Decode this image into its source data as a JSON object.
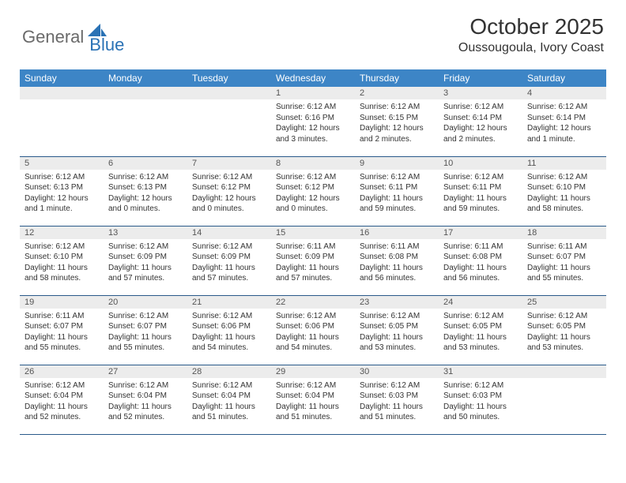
{
  "brand": {
    "part1": "General",
    "part2": "Blue"
  },
  "title": "October 2025",
  "location": "Oussougoula, Ivory Coast",
  "colors": {
    "header_bg": "#3d85c6",
    "header_text": "#ffffff",
    "daynum_bg": "#ececec",
    "border": "#2a5a8a",
    "brand_gray": "#6a6a6a",
    "brand_blue": "#2a72b5"
  },
  "day_headers": [
    "Sunday",
    "Monday",
    "Tuesday",
    "Wednesday",
    "Thursday",
    "Friday",
    "Saturday"
  ],
  "weeks": [
    [
      {
        "n": "",
        "lines": []
      },
      {
        "n": "",
        "lines": []
      },
      {
        "n": "",
        "lines": []
      },
      {
        "n": "1",
        "lines": [
          "Sunrise: 6:12 AM",
          "Sunset: 6:16 PM",
          "Daylight: 12 hours and 3 minutes."
        ]
      },
      {
        "n": "2",
        "lines": [
          "Sunrise: 6:12 AM",
          "Sunset: 6:15 PM",
          "Daylight: 12 hours and 2 minutes."
        ]
      },
      {
        "n": "3",
        "lines": [
          "Sunrise: 6:12 AM",
          "Sunset: 6:14 PM",
          "Daylight: 12 hours and 2 minutes."
        ]
      },
      {
        "n": "4",
        "lines": [
          "Sunrise: 6:12 AM",
          "Sunset: 6:14 PM",
          "Daylight: 12 hours and 1 minute."
        ]
      }
    ],
    [
      {
        "n": "5",
        "lines": [
          "Sunrise: 6:12 AM",
          "Sunset: 6:13 PM",
          "Daylight: 12 hours and 1 minute."
        ]
      },
      {
        "n": "6",
        "lines": [
          "Sunrise: 6:12 AM",
          "Sunset: 6:13 PM",
          "Daylight: 12 hours and 0 minutes."
        ]
      },
      {
        "n": "7",
        "lines": [
          "Sunrise: 6:12 AM",
          "Sunset: 6:12 PM",
          "Daylight: 12 hours and 0 minutes."
        ]
      },
      {
        "n": "8",
        "lines": [
          "Sunrise: 6:12 AM",
          "Sunset: 6:12 PM",
          "Daylight: 12 hours and 0 minutes."
        ]
      },
      {
        "n": "9",
        "lines": [
          "Sunrise: 6:12 AM",
          "Sunset: 6:11 PM",
          "Daylight: 11 hours and 59 minutes."
        ]
      },
      {
        "n": "10",
        "lines": [
          "Sunrise: 6:12 AM",
          "Sunset: 6:11 PM",
          "Daylight: 11 hours and 59 minutes."
        ]
      },
      {
        "n": "11",
        "lines": [
          "Sunrise: 6:12 AM",
          "Sunset: 6:10 PM",
          "Daylight: 11 hours and 58 minutes."
        ]
      }
    ],
    [
      {
        "n": "12",
        "lines": [
          "Sunrise: 6:12 AM",
          "Sunset: 6:10 PM",
          "Daylight: 11 hours and 58 minutes."
        ]
      },
      {
        "n": "13",
        "lines": [
          "Sunrise: 6:12 AM",
          "Sunset: 6:09 PM",
          "Daylight: 11 hours and 57 minutes."
        ]
      },
      {
        "n": "14",
        "lines": [
          "Sunrise: 6:12 AM",
          "Sunset: 6:09 PM",
          "Daylight: 11 hours and 57 minutes."
        ]
      },
      {
        "n": "15",
        "lines": [
          "Sunrise: 6:11 AM",
          "Sunset: 6:09 PM",
          "Daylight: 11 hours and 57 minutes."
        ]
      },
      {
        "n": "16",
        "lines": [
          "Sunrise: 6:11 AM",
          "Sunset: 6:08 PM",
          "Daylight: 11 hours and 56 minutes."
        ]
      },
      {
        "n": "17",
        "lines": [
          "Sunrise: 6:11 AM",
          "Sunset: 6:08 PM",
          "Daylight: 11 hours and 56 minutes."
        ]
      },
      {
        "n": "18",
        "lines": [
          "Sunrise: 6:11 AM",
          "Sunset: 6:07 PM",
          "Daylight: 11 hours and 55 minutes."
        ]
      }
    ],
    [
      {
        "n": "19",
        "lines": [
          "Sunrise: 6:11 AM",
          "Sunset: 6:07 PM",
          "Daylight: 11 hours and 55 minutes."
        ]
      },
      {
        "n": "20",
        "lines": [
          "Sunrise: 6:12 AM",
          "Sunset: 6:07 PM",
          "Daylight: 11 hours and 55 minutes."
        ]
      },
      {
        "n": "21",
        "lines": [
          "Sunrise: 6:12 AM",
          "Sunset: 6:06 PM",
          "Daylight: 11 hours and 54 minutes."
        ]
      },
      {
        "n": "22",
        "lines": [
          "Sunrise: 6:12 AM",
          "Sunset: 6:06 PM",
          "Daylight: 11 hours and 54 minutes."
        ]
      },
      {
        "n": "23",
        "lines": [
          "Sunrise: 6:12 AM",
          "Sunset: 6:05 PM",
          "Daylight: 11 hours and 53 minutes."
        ]
      },
      {
        "n": "24",
        "lines": [
          "Sunrise: 6:12 AM",
          "Sunset: 6:05 PM",
          "Daylight: 11 hours and 53 minutes."
        ]
      },
      {
        "n": "25",
        "lines": [
          "Sunrise: 6:12 AM",
          "Sunset: 6:05 PM",
          "Daylight: 11 hours and 53 minutes."
        ]
      }
    ],
    [
      {
        "n": "26",
        "lines": [
          "Sunrise: 6:12 AM",
          "Sunset: 6:04 PM",
          "Daylight: 11 hours and 52 minutes."
        ]
      },
      {
        "n": "27",
        "lines": [
          "Sunrise: 6:12 AM",
          "Sunset: 6:04 PM",
          "Daylight: 11 hours and 52 minutes."
        ]
      },
      {
        "n": "28",
        "lines": [
          "Sunrise: 6:12 AM",
          "Sunset: 6:04 PM",
          "Daylight: 11 hours and 51 minutes."
        ]
      },
      {
        "n": "29",
        "lines": [
          "Sunrise: 6:12 AM",
          "Sunset: 6:04 PM",
          "Daylight: 11 hours and 51 minutes."
        ]
      },
      {
        "n": "30",
        "lines": [
          "Sunrise: 6:12 AM",
          "Sunset: 6:03 PM",
          "Daylight: 11 hours and 51 minutes."
        ]
      },
      {
        "n": "31",
        "lines": [
          "Sunrise: 6:12 AM",
          "Sunset: 6:03 PM",
          "Daylight: 11 hours and 50 minutes."
        ]
      },
      {
        "n": "",
        "lines": []
      }
    ]
  ]
}
